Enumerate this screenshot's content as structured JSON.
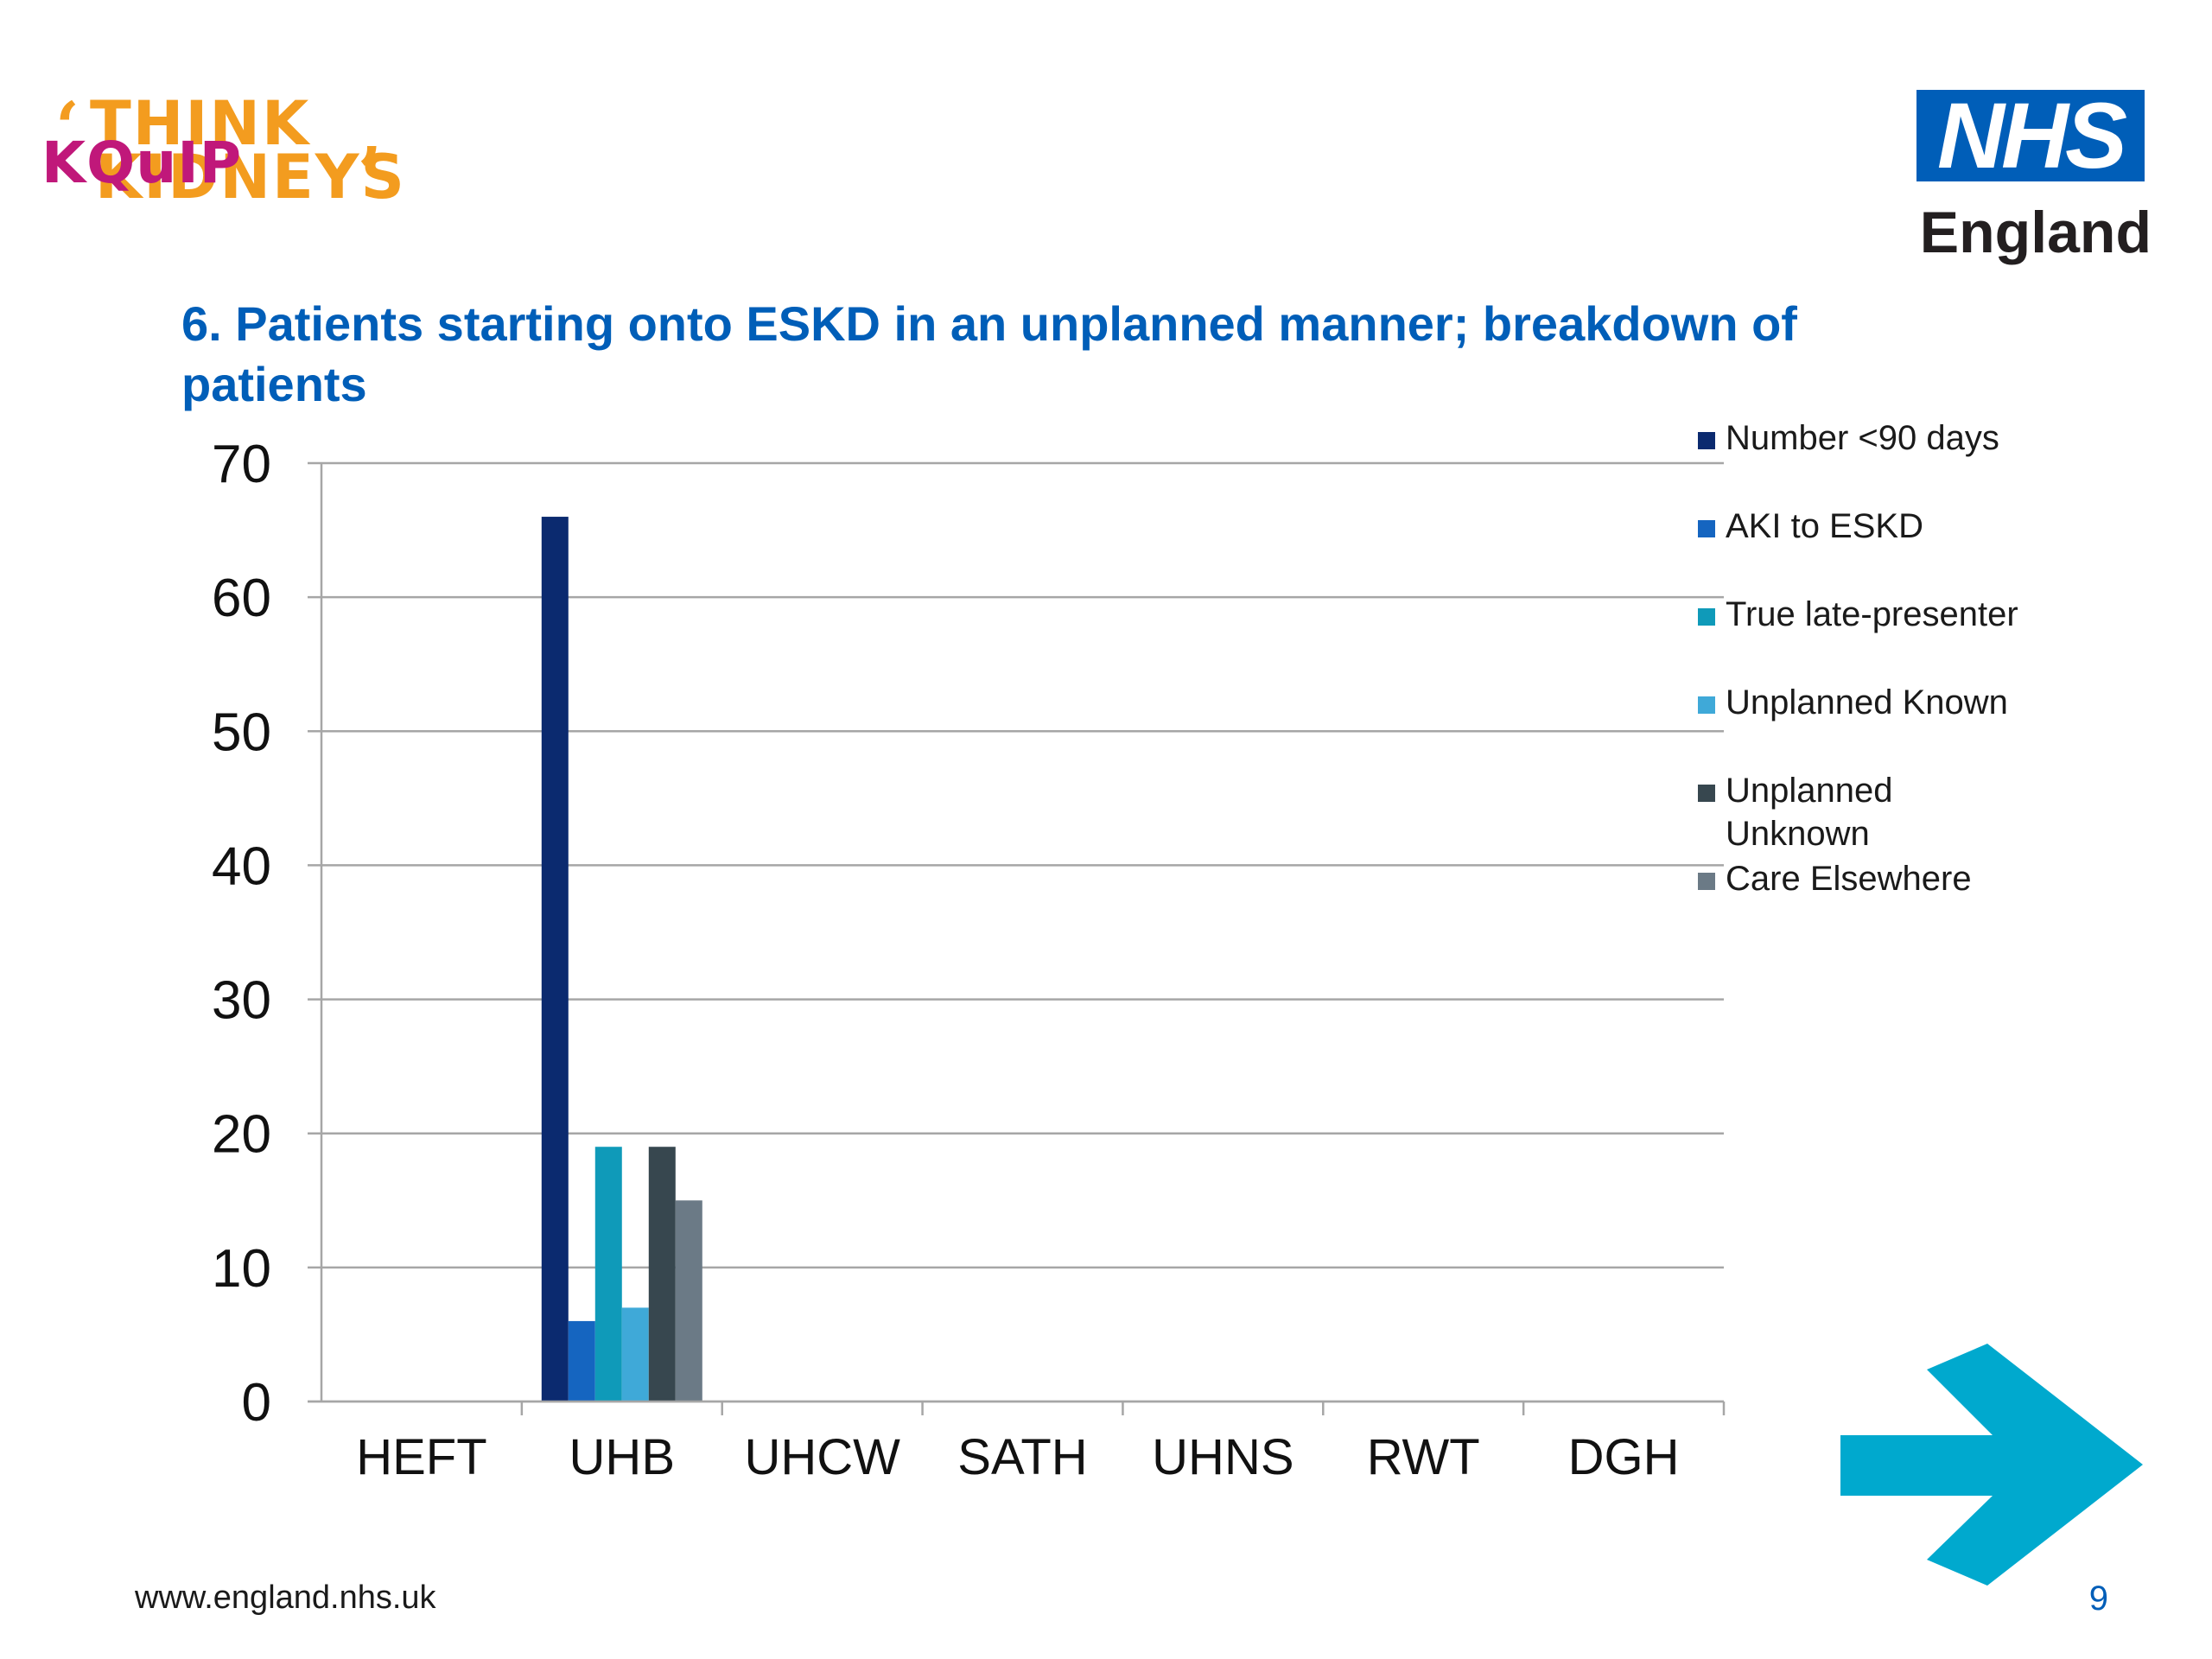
{
  "branding": {
    "think_line1": "THINK",
    "think_line2": "KIDNEYS",
    "kquip": "KQuIP",
    "nhs": "NHS",
    "england": "England"
  },
  "slide": {
    "title": "6. Patients starting onto ESKD in an unplanned manner; breakdown of patients",
    "footer_url": "www.england.nhs.uk",
    "page_number": "9"
  },
  "chart_data": {
    "type": "bar",
    "title": "",
    "xlabel": "",
    "ylabel": "",
    "ylim": [
      0,
      70
    ],
    "yticks": [
      0,
      10,
      20,
      30,
      40,
      50,
      60,
      70
    ],
    "grid": true,
    "legend_position": "right",
    "categories": [
      "HEFT",
      "UHB",
      "UHCW",
      "SATH",
      "UHNS",
      "RWT",
      "DGH"
    ],
    "series": [
      {
        "name": "Number <90 days",
        "color": "#0b2a6f",
        "values": [
          0,
          66,
          0,
          0,
          0,
          0,
          0
        ]
      },
      {
        "name": "AKI to ESKD",
        "color": "#1565c0",
        "values": [
          0,
          6,
          0,
          0,
          0,
          0,
          0
        ]
      },
      {
        "name": "True late-presenter",
        "color": "#0f9ab9",
        "values": [
          0,
          19,
          0,
          0,
          0,
          0,
          0
        ]
      },
      {
        "name": "Unplanned Known",
        "color": "#3fa9d8",
        "values": [
          0,
          7,
          0,
          0,
          0,
          0,
          0
        ]
      },
      {
        "name": "Unplanned Unknown",
        "color": "#37474f",
        "values": [
          0,
          19,
          0,
          0,
          0,
          0,
          0
        ]
      },
      {
        "name": "Care Elsewhere",
        "color": "#6b7a86",
        "values": [
          0,
          15,
          0,
          0,
          0,
          0,
          0
        ]
      }
    ]
  }
}
